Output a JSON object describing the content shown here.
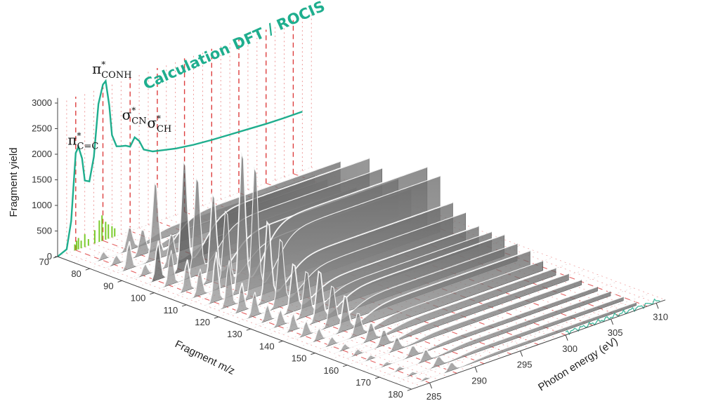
{
  "chart_data": {
    "type": "3d-waterfall",
    "calc_title": "Calculation DFT / ROCIS",
    "ylabel": "Fragment yield",
    "xlabel": "Fragment m/z",
    "zlabel": "Photon energy (eV)",
    "y_ticks": [
      "0",
      "500",
      "1000",
      "1500",
      "2000",
      "2500",
      "3000"
    ],
    "x_ticks": [
      "70",
      "80",
      "90",
      "100",
      "110",
      "120",
      "130",
      "140",
      "150",
      "160",
      "170",
      "180"
    ],
    "z_ticks": [
      "285",
      "290",
      "295",
      "300",
      "305",
      "310"
    ],
    "ylim": [
      0,
      3200
    ],
    "xlim": [
      70,
      180
    ],
    "zlim": [
      283,
      311
    ],
    "peak_labels": [
      {
        "base": "π",
        "sup": "*",
        "sub": "C=C",
        "energy": 285.2
      },
      {
        "base": "π",
        "sup": "*",
        "sub": "CONH",
        "energy": 288.2
      },
      {
        "base": "σ",
        "sup": "*",
        "sub": "CN",
        "energy": 291.5
      },
      {
        "base": "σ",
        "sup": "*",
        "sub": "CH",
        "energy": 293.8
      }
    ],
    "total_yield_curve": {
      "energy": [
        283,
        284,
        284.5,
        285,
        285.3,
        285.7,
        286,
        286.5,
        287,
        287.5,
        288,
        288.3,
        288.7,
        289,
        289.5,
        290,
        290.5,
        291,
        291.5,
        292,
        292.5,
        293,
        293.5,
        294,
        295,
        296,
        298,
        300,
        302,
        304,
        306,
        308,
        310
      ],
      "yield": [
        0,
        80,
        600,
        1900,
        2000,
        1750,
        1300,
        1250,
        1700,
        2700,
        3050,
        3100,
        2600,
        2000,
        1750,
        1720,
        1700,
        1650,
        1800,
        1700,
        1500,
        1450,
        1400,
        1380,
        1340,
        1300,
        1250,
        1220,
        1200,
        1180,
        1160,
        1150,
        1150
      ]
    },
    "fragment_masses": [
      78,
      82,
      86,
      91,
      95,
      99,
      104,
      108,
      113,
      117,
      121,
      125,
      129,
      133,
      137,
      141,
      145,
      149,
      153,
      157,
      161,
      166,
      170,
      174,
      178
    ],
    "fragment_peak_heights": [
      450,
      500,
      1550,
      620,
      2200,
      1950,
      1750,
      1500,
      2800,
      2600,
      1600,
      1350,
      950,
      900,
      1000,
      800,
      700,
      450,
      350,
      300,
      250,
      200,
      220,
      180,
      160
    ],
    "colors": {
      "calculation": "#1fae8e",
      "calc_sticks": "#7acb2b",
      "fragment_fill": "#6f6f6f",
      "fragment_line": "#ffffff",
      "grid_dash": "#d81e1e"
    }
  }
}
